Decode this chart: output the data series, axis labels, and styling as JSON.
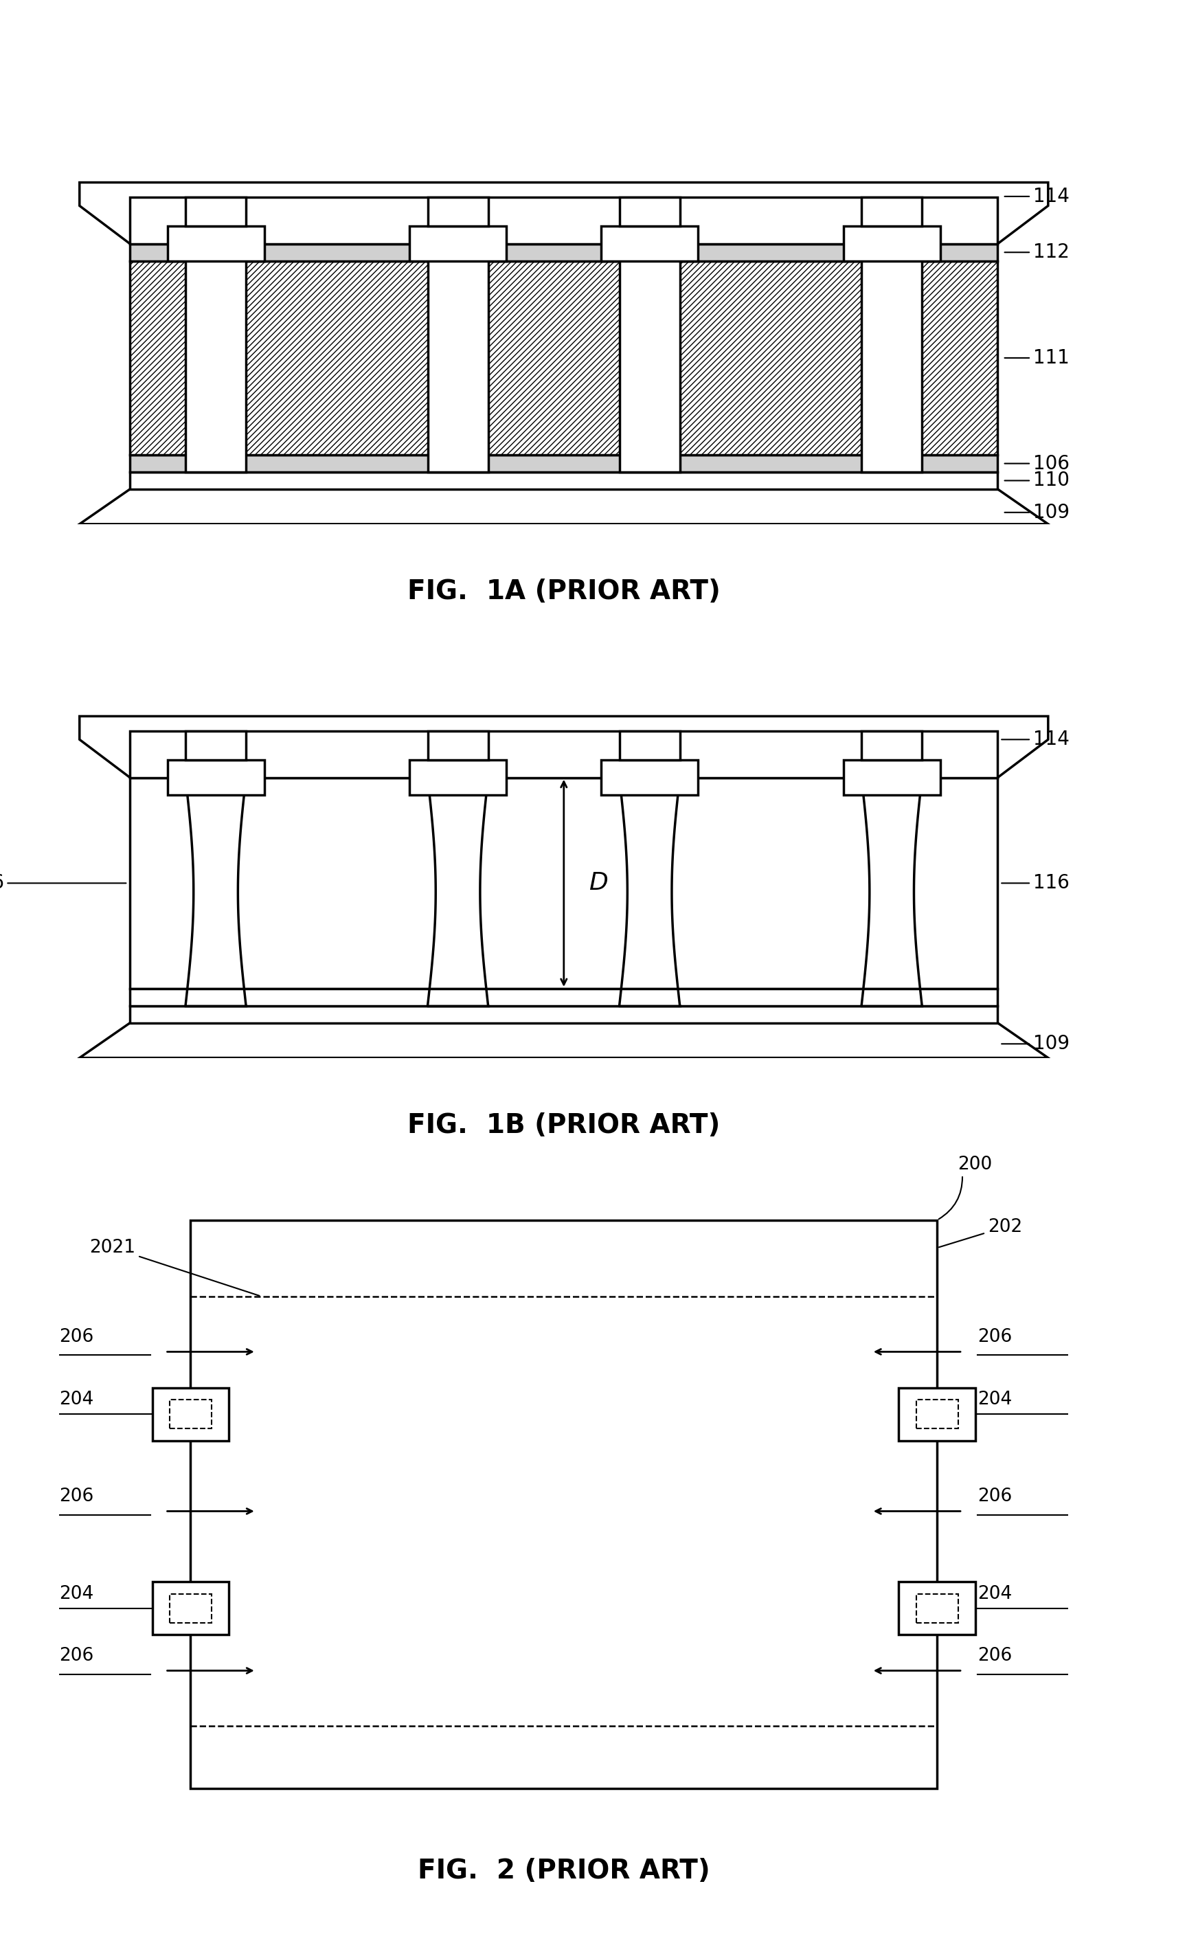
{
  "fig_width": 17.28,
  "fig_height": 28.25,
  "bg_color": "#ffffff",
  "line_color": "#000000",
  "fig1a_title": "FIG.  1A (PRIOR ART)",
  "fig1b_title": "FIG.  1B (PRIOR ART)",
  "fig2_title": "FIG.  2 (PRIOR ART)",
  "font_size_title": 28,
  "font_size_label": 20,
  "line_width": 2.5
}
